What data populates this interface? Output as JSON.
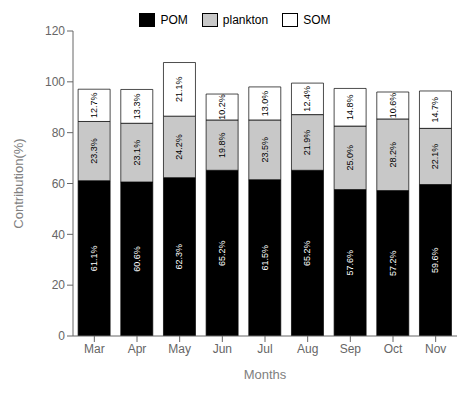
{
  "chart_data": {
    "type": "bar",
    "stacked": true,
    "categories": [
      "Mar",
      "Apr",
      "May",
      "Jun",
      "Jul",
      "Aug",
      "Sep",
      "Oct",
      "Nov"
    ],
    "series": [
      {
        "name": "POM",
        "color": "#000000",
        "values": [
          61.1,
          60.6,
          62.3,
          65.2,
          61.5,
          65.2,
          57.6,
          57.2,
          59.6
        ],
        "value_labels": [
          "61.1%",
          "60.6%",
          "62.3%",
          "65.2%",
          "61.5%",
          "65.2%",
          "57.6%",
          "57.2%",
          "59.6%"
        ]
      },
      {
        "name": "plankton",
        "color": "#c8c8c8",
        "values": [
          23.3,
          23.1,
          24.2,
          19.8,
          23.5,
          21.9,
          25.0,
          28.2,
          22.1
        ],
        "value_labels": [
          "23.3%",
          "23.1%",
          "24.2%",
          "19.8%",
          "23.5%",
          "21.9%",
          "25.0%",
          "28.2%",
          "22.1%"
        ]
      },
      {
        "name": "SOM",
        "color": "#ffffff",
        "values": [
          12.7,
          13.3,
          21.1,
          10.2,
          13.0,
          12.4,
          14.8,
          10.6,
          14.7
        ],
        "value_labels": [
          "12.7%",
          "13.3%",
          "21.1%",
          "10.2%",
          "13.0%",
          "12.4%",
          "14.8%",
          "10.6%",
          "14.7%"
        ]
      }
    ],
    "xlabel": "Months",
    "ylabel": "Contribution(%)",
    "ylim": [
      0,
      120
    ],
    "yticks": [
      0,
      20,
      40,
      60,
      80,
      100,
      120
    ],
    "grid": false,
    "legend": "top",
    "data_labels": true
  }
}
